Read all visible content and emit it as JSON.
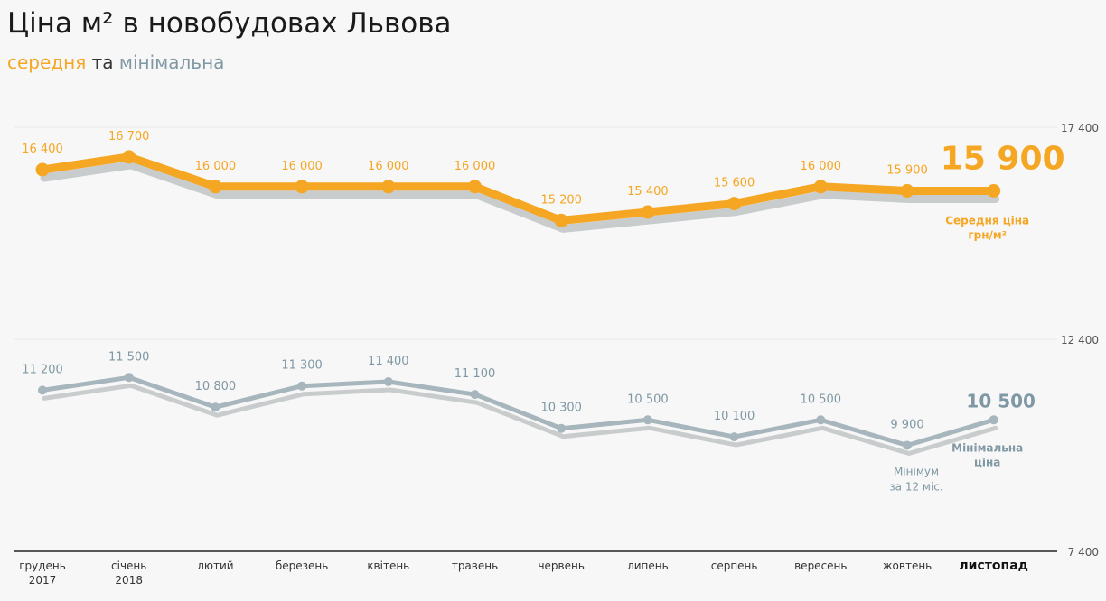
{
  "header": {
    "title": "Ціна м² в новобудовах Львова",
    "subtitle_part1": "середня",
    "subtitle_part2": " та ",
    "subtitle_part3": "мінімальна"
  },
  "colors": {
    "average": "#f5a623",
    "average_label": "#f5a623",
    "minimum": "#a7b6bd",
    "minimum_label": "#7f98a4",
    "shadow": "#c9cccd",
    "axis": "#222222",
    "grid": "#e9e9e9"
  },
  "chart_data": {
    "type": "line",
    "categories": [
      [
        "грудень",
        "2017"
      ],
      [
        "січень",
        "2018"
      ],
      [
        "лютий"
      ],
      [
        "березень"
      ],
      [
        "квітень"
      ],
      [
        "травень"
      ],
      [
        "червень"
      ],
      [
        "липень"
      ],
      [
        "серпень"
      ],
      [
        "вересень"
      ],
      [
        "жовтень"
      ],
      [
        "листопад"
      ]
    ],
    "highlight_category": 11,
    "ylim": [
      7400,
      17400
    ],
    "yticks": [
      7400,
      12400,
      17400
    ],
    "ytick_labels": [
      "7 400",
      "12 400",
      "17 400"
    ],
    "grid": true,
    "series": [
      {
        "name": "Середня ціна грн/м²",
        "name_lines": [
          "Середня ціна",
          "грн/м²"
        ],
        "values": [
          16400,
          16700,
          16000,
          16000,
          16000,
          16000,
          15200,
          15400,
          15600,
          16000,
          15900,
          15900
        ],
        "labels": [
          "16 400",
          "16 700",
          "16 000",
          "16 000",
          "16 000",
          "16 000",
          "15 200",
          "15 400",
          "15 600",
          "16 000",
          "15 900",
          "15 900"
        ]
      },
      {
        "name": "Мінімальна ціна",
        "name_lines": [
          "Мінімальна",
          "ціна"
        ],
        "values": [
          11200,
          11500,
          10800,
          11300,
          11400,
          11100,
          10300,
          10500,
          10100,
          10500,
          9900,
          10500
        ],
        "labels": [
          "11 200",
          "11 500",
          "10 800",
          "11 300",
          "11 400",
          "11 100",
          "10 300",
          "10 500",
          "10 100",
          "10 500",
          "9 900",
          "10 500"
        ]
      }
    ],
    "annotation": {
      "category": 10,
      "lines": [
        "Мінімум",
        "за 12 міс."
      ]
    }
  }
}
